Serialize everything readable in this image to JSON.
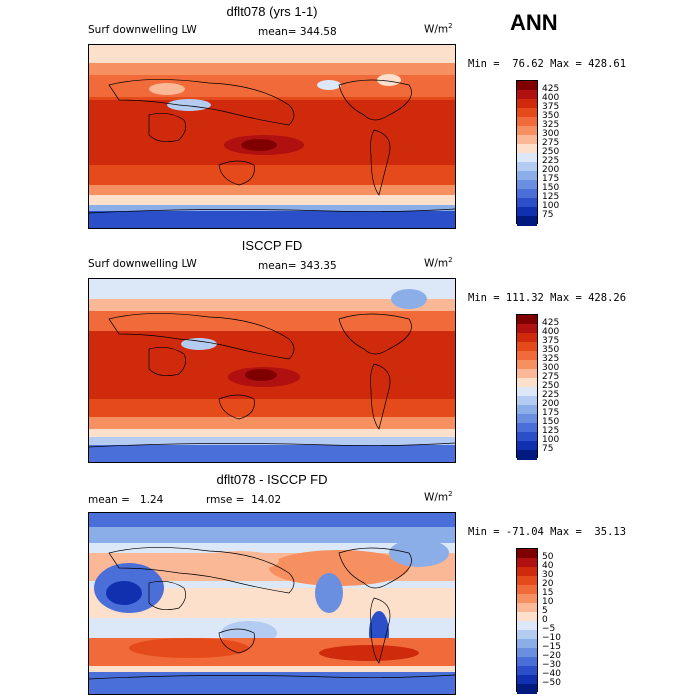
{
  "season_label": "ANN",
  "panels": [
    {
      "title": "dflt078 (yrs 1-1)",
      "field_label": "Surf downwelling LW",
      "stat_text": "mean= 344.58",
      "units": "W/m",
      "units_sup": "2",
      "minmax_text": "Min =  76.62 Max = 428.61",
      "colorbar_labels": [
        "425",
        "400",
        "375",
        "350",
        "325",
        "300",
        "275",
        "250",
        "225",
        "200",
        "175",
        "150",
        "125",
        "100",
        "75"
      ]
    },
    {
      "title": "ISCCP FD",
      "field_label": "Surf downwelling LW",
      "stat_text": "mean= 343.35",
      "units": "W/m",
      "units_sup": "2",
      "minmax_text": "Min = 111.32 Max = 428.26",
      "colorbar_labels": [
        "425",
        "400",
        "375",
        "350",
        "325",
        "300",
        "275",
        "250",
        "225",
        "200",
        "175",
        "150",
        "125",
        "100",
        "75"
      ]
    },
    {
      "title": "dflt078 - ISCCP FD",
      "field_label": "mean =   1.24",
      "stat_text": "rmse =  14.02",
      "units": "W/m",
      "units_sup": "2",
      "minmax_text": "Min = -71.04 Max =  35.13",
      "colorbar_labels": [
        "50",
        "40",
        "30",
        "20",
        "15",
        "10",
        "5",
        "0",
        "−5",
        "−10",
        "−15",
        "−20",
        "−30",
        "−40",
        "−50"
      ]
    }
  ],
  "colors": {
    "abs_scale": [
      "#800000",
      "#b01010",
      "#d02a0c",
      "#e54a1a",
      "#f06a3a",
      "#f79060",
      "#fbb896",
      "#fde0cc",
      "#dce8f8",
      "#b4ccf2",
      "#8caee8",
      "#6a8fe0",
      "#4a6fd8",
      "#2a4fc8",
      "#1030b0",
      "#001a80"
    ],
    "diff_scale": [
      "#800000",
      "#b01010",
      "#d02a0c",
      "#e54a1a",
      "#f06a3a",
      "#f79060",
      "#fbb896",
      "#fde0cc",
      "#dce8f8",
      "#b4ccf2",
      "#8caee8",
      "#6a8fe0",
      "#4a6fd8",
      "#2a4fc8",
      "#1030b0",
      "#001a80"
    ]
  }
}
